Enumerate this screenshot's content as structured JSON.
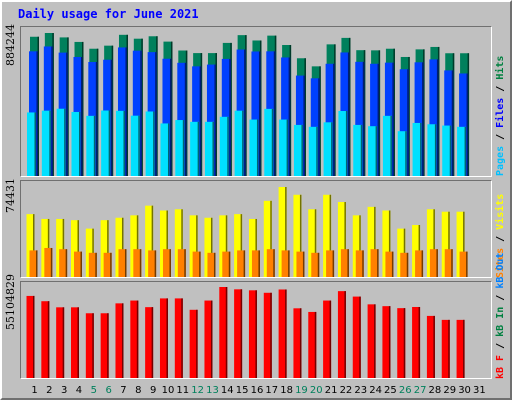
{
  "title": "Daily usage for June 2021",
  "colors": {
    "hits": "#00805c",
    "files": "#0040ff",
    "pages": "#00e0ff",
    "visits": "#ffff00",
    "sites": "#ff8000",
    "kbytes": "#ff0000",
    "weekend_label": "#00805c",
    "weekday_label": "#000000"
  },
  "legend": {
    "hits_group": {
      "pages": "Pages",
      "files": "Files",
      "hits": "Hits",
      "sep1": " / ",
      "sep2": " / "
    },
    "visits_group": {
      "sites": "Sites",
      "visits": "Visits",
      "sep1": " / "
    },
    "kb_group": {
      "kbf": "kB F",
      "kbin": "kB In",
      "kbout": "kB Out",
      "sep1": " / ",
      "sep2": " / "
    }
  },
  "ymax": {
    "hits": "884244",
    "visits": "74431",
    "kbytes": "55104829"
  },
  "chart_data": [
    {
      "type": "bar",
      "title": "Daily usage for June 2021",
      "categories": [
        "1",
        "2",
        "3",
        "4",
        "5",
        "6",
        "7",
        "8",
        "9",
        "10",
        "11",
        "12",
        "13",
        "14",
        "15",
        "16",
        "17",
        "18",
        "19",
        "20",
        "21",
        "22",
        "23",
        "24",
        "25",
        "26",
        "27",
        "28",
        "29",
        "30",
        "31"
      ],
      "weekend_days": [
        "5",
        "6",
        "12",
        "13",
        "19",
        "20",
        "26",
        "27"
      ],
      "ylim": [
        0,
        884244
      ],
      "series": [
        {
          "name": "Hits",
          "values": [
            861000,
            884244,
            857000,
            829000,
            787000,
            806000,
            873000,
            849000,
            864000,
            831000,
            776000,
            760000,
            760000,
            823000,
            871000,
            838000,
            868000,
            810000,
            728000,
            678000,
            814000,
            854000,
            778000,
            777000,
            787000,
            736000,
            783000,
            798000,
            759000,
            759000,
            0
          ]
        },
        {
          "name": "Files",
          "values": [
            771000,
            801000,
            763000,
            736000,
            705000,
            719000,
            795000,
            775000,
            766000,
            725000,
            700000,
            678000,
            689000,
            724000,
            782000,
            770000,
            771000,
            733000,
            621000,
            604000,
            694000,
            764000,
            706000,
            694000,
            701000,
            660000,
            703000,
            721000,
            653000,
            634000,
            0
          ]
        },
        {
          "name": "Pages",
          "values": [
            393000,
            404000,
            416000,
            396000,
            372000,
            405000,
            403000,
            373000,
            399000,
            325000,
            346000,
            335000,
            335000,
            366000,
            404000,
            349000,
            415000,
            349000,
            316000,
            304000,
            332000,
            402000,
            316000,
            308000,
            372000,
            277000,
            328000,
            320000,
            312000,
            304000,
            0
          ]
        }
      ]
    },
    {
      "type": "bar",
      "categories": [
        "1",
        "2",
        "3",
        "4",
        "5",
        "6",
        "7",
        "8",
        "9",
        "10",
        "11",
        "12",
        "13",
        "14",
        "15",
        "16",
        "17",
        "18",
        "19",
        "20",
        "21",
        "22",
        "23",
        "24",
        "25",
        "26",
        "27",
        "28",
        "29",
        "30",
        "31"
      ],
      "ylim": [
        0,
        74431
      ],
      "series": [
        {
          "name": "Visits",
          "values": [
            52000,
            48000,
            48000,
            47000,
            40000,
            47000,
            49000,
            51000,
            59000,
            55000,
            56000,
            51000,
            49000,
            51000,
            52000,
            48000,
            63000,
            74431,
            68000,
            56000,
            68000,
            62000,
            51000,
            58000,
            55000,
            40000,
            43000,
            56000,
            54000,
            54000,
            0
          ]
        },
        {
          "name": "Sites",
          "values": [
            22000,
            24000,
            23000,
            21000,
            20000,
            20000,
            23000,
            23000,
            22000,
            23000,
            23000,
            21000,
            20000,
            21000,
            22000,
            22000,
            23000,
            22000,
            21000,
            20000,
            22000,
            23000,
            22000,
            23000,
            21000,
            20000,
            22000,
            23000,
            23000,
            21000,
            0
          ]
        }
      ]
    },
    {
      "type": "bar",
      "categories": [
        "1",
        "2",
        "3",
        "4",
        "5",
        "6",
        "7",
        "8",
        "9",
        "10",
        "11",
        "12",
        "13",
        "14",
        "15",
        "16",
        "17",
        "18",
        "19",
        "20",
        "21",
        "22",
        "23",
        "24",
        "25",
        "26",
        "27",
        "28",
        "29",
        "30",
        "31"
      ],
      "ylim": [
        0,
        55104829
      ],
      "series": [
        {
          "name": "kB F",
          "values": [
            49700000,
            46500000,
            42800000,
            42800000,
            39200000,
            39200000,
            45200000,
            46900000,
            42900000,
            48200000,
            48200000,
            41300000,
            46900000,
            55104829,
            53700000,
            53100000,
            51600000,
            53600000,
            42200000,
            40000000,
            46900000,
            52600000,
            49300000,
            44600000,
            43500000,
            42300000,
            43000000,
            37600000,
            35200000,
            35200000,
            0
          ]
        }
      ]
    }
  ]
}
